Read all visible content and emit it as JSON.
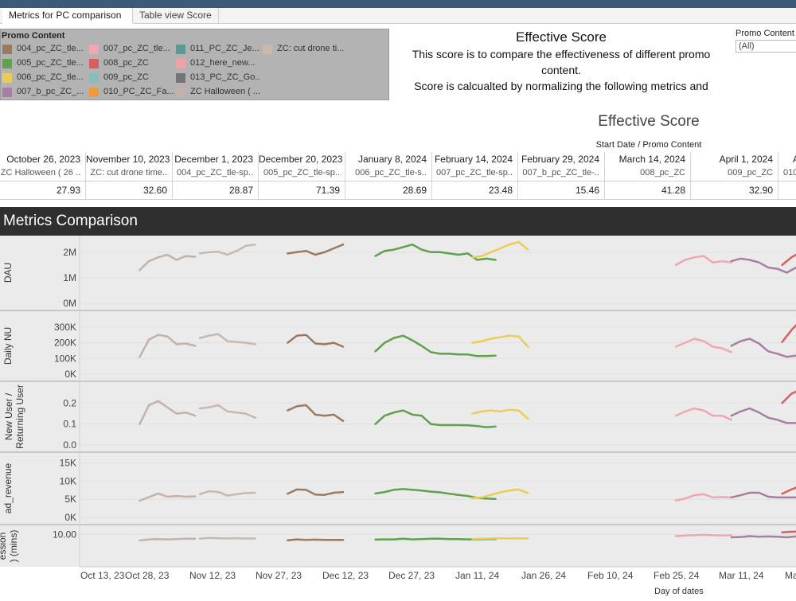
{
  "tabs": [
    {
      "label": "Metrics for PC comparison",
      "active": true
    },
    {
      "label": "Table view Score",
      "active": false
    }
  ],
  "legend": {
    "title": "Promo Content",
    "items": [
      {
        "label": "004_pc_ZC_tle...",
        "color": "#9c7a61"
      },
      {
        "label": "005_pc_ZC_tle...",
        "color": "#5fa14c"
      },
      {
        "label": "006_pc_ZC_tle...",
        "color": "#e9cd55"
      },
      {
        "label": "007_b_pc_ZC_...",
        "color": "#a97ea4"
      },
      {
        "label": "007_pc_ZC_tle...",
        "color": "#f2a7b0"
      },
      {
        "label": "008_pc_ZC",
        "color": "#d95f5f"
      },
      {
        "label": "009_pc_ZC",
        "color": "#89bdb7"
      },
      {
        "label": "010_PC_ZC_Fa...",
        "color": "#ef9a3e"
      },
      {
        "label": "011_PC_ZC_Je...",
        "color": "#5a9a96"
      },
      {
        "label": "012_here_new...",
        "color": "#f4a1a5"
      },
      {
        "label": "013_PC_ZC_Go...",
        "color": "#747474"
      },
      {
        "label": "ZC Halloween ( ...",
        "color": "#c2b2a9"
      },
      {
        "label": "ZC: cut drone ti...",
        "color": "#c9b8ae"
      }
    ]
  },
  "score_header": {
    "title": "Effective Score",
    "desc1": "This score is to compare the effectiveness of different promo",
    "desc2": "content.",
    "desc3": "Score is calcualted by normalizing the following metrics and"
  },
  "filter": {
    "label": "Promo Content",
    "value": "(All)"
  },
  "effective": {
    "title": "Effective Score",
    "subtitle": "Start Date / Promo Content"
  },
  "score_table": [
    {
      "date": "October 26, 2023",
      "promo": "ZC Halloween ( 26 ..",
      "score": "27.93"
    },
    {
      "date": "November 10, 2023",
      "promo": "ZC: cut drone time..",
      "score": "32.60"
    },
    {
      "date": "December 1, 2023",
      "promo": "004_pc_ZC_tle-sp..",
      "score": "28.87"
    },
    {
      "date": "December 20, 2023",
      "promo": "005_pc_ZC_tle-sp..",
      "score": "71.39"
    },
    {
      "date": "January 8, 2024",
      "promo": "006_pc_ZC_tle-s..",
      "score": "28.69"
    },
    {
      "date": "February 14, 2024",
      "promo": "007_pc_ZC_tle-sp..",
      "score": "23.48"
    },
    {
      "date": "February 29, 2024",
      "promo": "007_b_pc_ZC_tle-..",
      "score": "15.46"
    },
    {
      "date": "March 14, 2024",
      "promo": "008_pc_ZC",
      "score": "41.28"
    },
    {
      "date": "April 1, 2024",
      "promo": "009_pc_ZC",
      "score": "32.90"
    },
    {
      "date": "A",
      "promo": "010",
      "score": ""
    }
  ],
  "metrics_title": "Metrics Comparison",
  "x_axis_label": "Day of dates",
  "chart_data": {
    "type": "line",
    "x_ticks": [
      "Oct 13, 23",
      "Oct 28, 23",
      "Nov 12, 23",
      "Nov 27, 23",
      "Dec 12, 23",
      "Dec 27, 23",
      "Jan 11, 24",
      "Jan 26, 24",
      "Feb 10, 24",
      "Feb 25, 24",
      "Mar 11, 24",
      "Ma"
    ],
    "x_range": [
      "2023-10-13",
      "2024-03-16"
    ],
    "grid": true,
    "panels": [
      {
        "label": "DAU",
        "ticks": [
          "2M",
          "1M",
          "0M"
        ],
        "tick_values": [
          2000000,
          1000000,
          0
        ],
        "ylim": [
          0,
          2400000
        ]
      },
      {
        "label": "Daily NU",
        "ticks": [
          "300K",
          "200K",
          "100K",
          "0K"
        ],
        "tick_values": [
          300000,
          200000,
          100000,
          0
        ],
        "ylim": [
          0,
          360000
        ]
      },
      {
        "label": "New User / Returning User",
        "ticks": [
          "0.2",
          "0.1",
          "0.0"
        ],
        "tick_values": [
          0.2,
          0.1,
          0.0
        ],
        "ylim": [
          0,
          0.27
        ]
      },
      {
        "label": "ad_revenue",
        "ticks": [
          "15K",
          "10K",
          "5K",
          "0K"
        ],
        "tick_values": [
          15000,
          10000,
          5000,
          0
        ],
        "ylim": [
          0,
          16000
        ]
      },
      {
        "label": "Session (mins)",
        "ticks": [
          "10.00"
        ],
        "tick_values": [
          10
        ],
        "ylim": [
          0,
          12
        ]
      }
    ],
    "series": [
      {
        "name": "ZC Halloween ( ...",
        "color": "#c2b2a9",
        "start": "2023-10-26",
        "values": {
          "DAU": [
            1300000,
            1650000,
            1800000,
            1900000,
            1700000,
            1850000,
            1820000
          ],
          "Daily NU": [
            110000,
            220000,
            250000,
            240000,
            190000,
            195000,
            180000
          ],
          "New User / Returning User": [
            0.1,
            0.19,
            0.21,
            0.18,
            0.15,
            0.155,
            0.14
          ],
          "ad_revenue": [
            4600,
            5600,
            6600,
            5700,
            5900,
            5700,
            5800
          ],
          "Session (mins)": [
            7.9,
            8.3,
            8.4,
            8.3,
            8.4,
            8.5,
            8.5
          ]
        }
      },
      {
        "name": "ZC: cut drone ti...",
        "color": "#c9b8ae",
        "start": "2023-11-08",
        "values": {
          "DAU": [
            1950000,
            2000000,
            2020000,
            1900000,
            2050000,
            2250000,
            2300000
          ],
          "Daily NU": [
            230000,
            245000,
            255000,
            210000,
            205000,
            200000,
            190000
          ],
          "New User / Returning User": [
            0.175,
            0.18,
            0.19,
            0.16,
            0.155,
            0.15,
            0.13
          ],
          "ad_revenue": [
            6400,
            7200,
            7000,
            6000,
            6400,
            6700,
            6800
          ],
          "Session (mins)": [
            8.5,
            8.8,
            8.7,
            8.6,
            8.7,
            8.6,
            8.6
          ]
        }
      },
      {
        "name": "004_pc_ZC_tle...",
        "color": "#9c7a61",
        "start": "2023-11-27",
        "values": {
          "DAU": [
            1950000,
            2000000,
            2050000,
            1900000,
            2000000,
            2150000,
            2300000
          ],
          "Daily NU": [
            200000,
            245000,
            250000,
            195000,
            190000,
            200000,
            175000
          ],
          "New User / Returning User": [
            0.165,
            0.185,
            0.19,
            0.145,
            0.14,
            0.145,
            0.115
          ],
          "ad_revenue": [
            6500,
            7700,
            7600,
            6300,
            6200,
            6800,
            7000
          ],
          "Session (mins)": [
            8.0,
            8.3,
            8.1,
            8.2,
            8.1,
            8.1,
            8.1
          ]
        }
      },
      {
        "name": "005_pc_ZC_tle...",
        "color": "#5fa14c",
        "start": "2023-12-16",
        "values": {
          "DAU": [
            1850000,
            2050000,
            2100000,
            2200000,
            2300000,
            2100000,
            2000000,
            2000000,
            1950000,
            1900000,
            1950000,
            1700000,
            1750000,
            1700000
          ],
          "Daily NU": [
            145000,
            200000,
            230000,
            245000,
            215000,
            180000,
            140000,
            130000,
            130000,
            125000,
            125000,
            115000,
            115000,
            118000
          ],
          "New User / Returning User": [
            0.1,
            0.14,
            0.155,
            0.165,
            0.145,
            0.14,
            0.1,
            0.095,
            0.095,
            0.095,
            0.094,
            0.09,
            0.085,
            0.088
          ],
          "ad_revenue": [
            6600,
            7000,
            7600,
            7800,
            7600,
            7400,
            7100,
            6900,
            6500,
            6200,
            5900,
            5400,
            5200,
            5100
          ],
          "Session (mins)": [
            8.2,
            8.3,
            8.3,
            8.5,
            8.3,
            8.4,
            8.5,
            8.5,
            8.4,
            8.4,
            8.3,
            8.3,
            8.4,
            8.4
          ]
        }
      },
      {
        "name": "006_pc_ZC_tle...",
        "color": "#e9cd55",
        "start": "2024-01-06",
        "values": {
          "DAU": [
            1800000,
            1850000,
            2000000,
            2150000,
            2300000,
            2400000,
            2100000
          ],
          "Daily NU": [
            200000,
            210000,
            225000,
            235000,
            245000,
            240000,
            175000
          ],
          "New User / Returning User": [
            0.15,
            0.16,
            0.165,
            0.16,
            0.168,
            0.165,
            0.125
          ],
          "ad_revenue": [
            5300,
            5500,
            6200,
            6900,
            7400,
            7700,
            6700
          ],
          "Session (mins)": [
            8.4,
            8.5,
            8.6,
            8.7,
            8.6,
            8.7,
            8.6
          ]
        }
      },
      {
        "name": "007_pc_ZC_tle...",
        "color": "#f2a7b0",
        "start": "2024-02-19",
        "values": {
          "DAU": [
            1500000,
            1700000,
            1800000,
            1850000,
            1600000,
            1650000,
            1600000
          ],
          "Daily NU": [
            175000,
            200000,
            225000,
            210000,
            175000,
            165000,
            140000
          ],
          "New User / Returning User": [
            0.14,
            0.16,
            0.175,
            0.165,
            0.14,
            0.14,
            0.12
          ],
          "ad_revenue": [
            4700,
            5200,
            6100,
            6400,
            5500,
            5600,
            5500
          ],
          "Session (mins)": [
            9.4,
            9.6,
            9.7,
            9.9,
            9.7,
            9.6,
            9.7
          ]
        }
      },
      {
        "name": "007_b_pc_ZC_...",
        "color": "#a97ea4",
        "start": "2024-03-02",
        "values": {
          "DAU": [
            1650000,
            1750000,
            1700000,
            1600000,
            1400000,
            1350000,
            1200000,
            1400000
          ],
          "Daily NU": [
            180000,
            210000,
            225000,
            195000,
            145000,
            130000,
            110000,
            118000
          ],
          "New User / Returning User": [
            0.14,
            0.16,
            0.175,
            0.155,
            0.13,
            0.12,
            0.105,
            0.105
          ],
          "ad_revenue": [
            5500,
            6100,
            6800,
            6800,
            5700,
            5500,
            5500,
            5500
          ],
          "Session (mins)": [
            9.0,
            9.1,
            9.4,
            9.2,
            9.3,
            9.2,
            9.0,
            9.3
          ]
        }
      },
      {
        "name": "008_pc_ZC",
        "color": "#d95f5f",
        "start": "2024-03-13",
        "values": {
          "DAU": [
            1500000,
            1800000,
            2000000,
            2000000,
            1850000,
            1900000,
            1950000,
            1850000
          ],
          "Daily NU": [
            205000,
            280000,
            340000,
            325000,
            235000,
            240000,
            220000,
            160000
          ],
          "New User / Returning User": [
            0.2,
            0.245,
            0.265,
            0.245,
            0.2,
            0.2,
            0.18,
            0.14
          ],
          "ad_revenue": [
            6500,
            7700,
            8700,
            8800,
            7600,
            7700,
            7800,
            7400
          ],
          "Session (mins)": [
            10.7,
            10.9,
            11.0,
            11.0,
            10.9,
            10.9,
            10.8,
            10.8
          ]
        }
      }
    ]
  }
}
